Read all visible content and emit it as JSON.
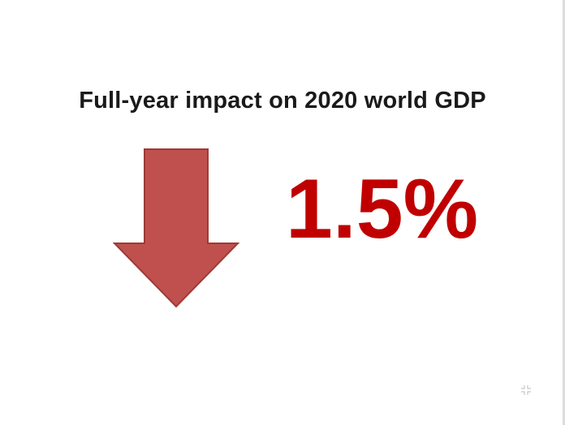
{
  "slide": {
    "title": "Full-year impact on 2020 world GDP",
    "value": "1.5%",
    "direction_icon": "down-arrow-icon",
    "controls": {
      "fullscreen_icon": "fullscreen-icon"
    }
  },
  "colors": {
    "arrow_fill": "#c0504d",
    "arrow_stroke": "#9b3b38",
    "value_text": "#c00000",
    "title_text": "#1a1a1a"
  }
}
